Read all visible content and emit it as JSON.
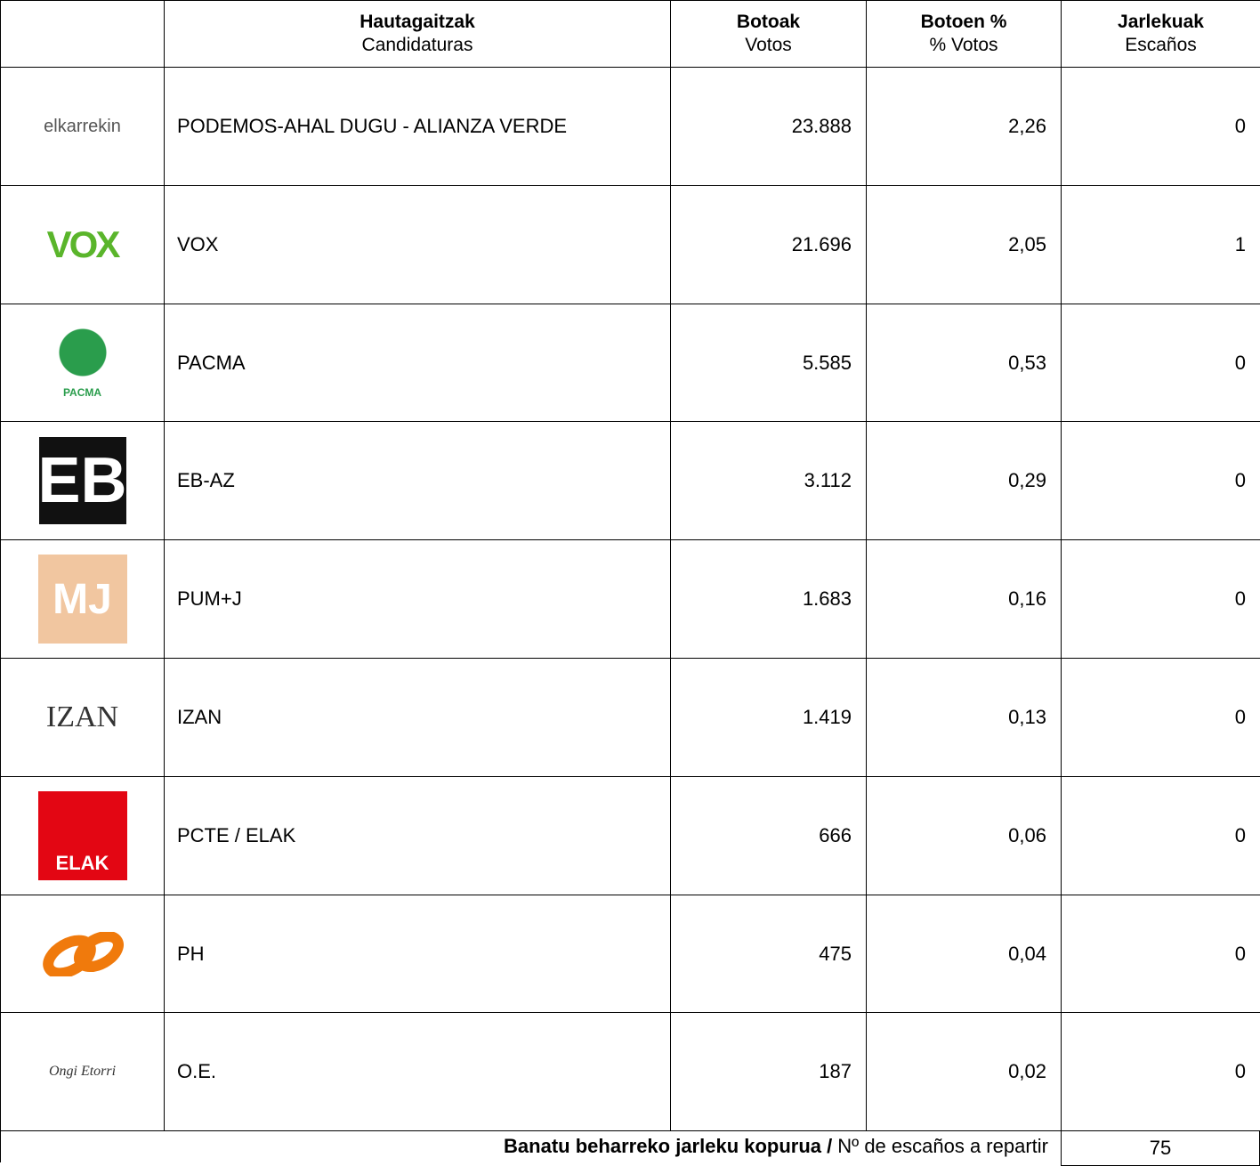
{
  "table": {
    "columns": [
      {
        "title": "Hautagaitzak",
        "subtitle": "Candidaturas"
      },
      {
        "title": "Botoak",
        "subtitle": "Votos"
      },
      {
        "title": "Botoen %",
        "subtitle": "% Votos"
      },
      {
        "title": "Jarlekuak",
        "subtitle": "Escaños"
      }
    ],
    "rows": [
      {
        "logo": "elkarrekin",
        "name": "PODEMOS-AHAL DUGU - ALIANZA VERDE",
        "votes": "23.888",
        "percent": "2,26",
        "seats": "0"
      },
      {
        "logo": "VOX",
        "name": "VOX",
        "votes": "21.696",
        "percent": "2,05",
        "seats": "1"
      },
      {
        "logo": "PACMA",
        "name": "PACMA",
        "votes": "5.585",
        "percent": "0,53",
        "seats": "0"
      },
      {
        "logo": "EB",
        "name": "EB-AZ",
        "votes": "3.112",
        "percent": "0,29",
        "seats": "0"
      },
      {
        "logo": "MJ",
        "name": "PUM+J",
        "votes": "1.683",
        "percent": "0,16",
        "seats": "0"
      },
      {
        "logo": "IZAN",
        "name": "IZAN",
        "votes": "1.419",
        "percent": "0,13",
        "seats": "0"
      },
      {
        "logo": "ELAK",
        "name": "PCTE / ELAK",
        "votes": "666",
        "percent": "0,06",
        "seats": "0"
      },
      {
        "name": "PH",
        "votes": "475",
        "percent": "0,04",
        "seats": "0"
      },
      {
        "logo": "Ongi Etorri",
        "name": "O.E.",
        "votes": "187",
        "percent": "0,02",
        "seats": "0"
      }
    ],
    "footer": {
      "label_bold": "Banatu beharreko jarleku kopurua /",
      "label": "Nº de escaños a repartir",
      "value": "75"
    }
  }
}
